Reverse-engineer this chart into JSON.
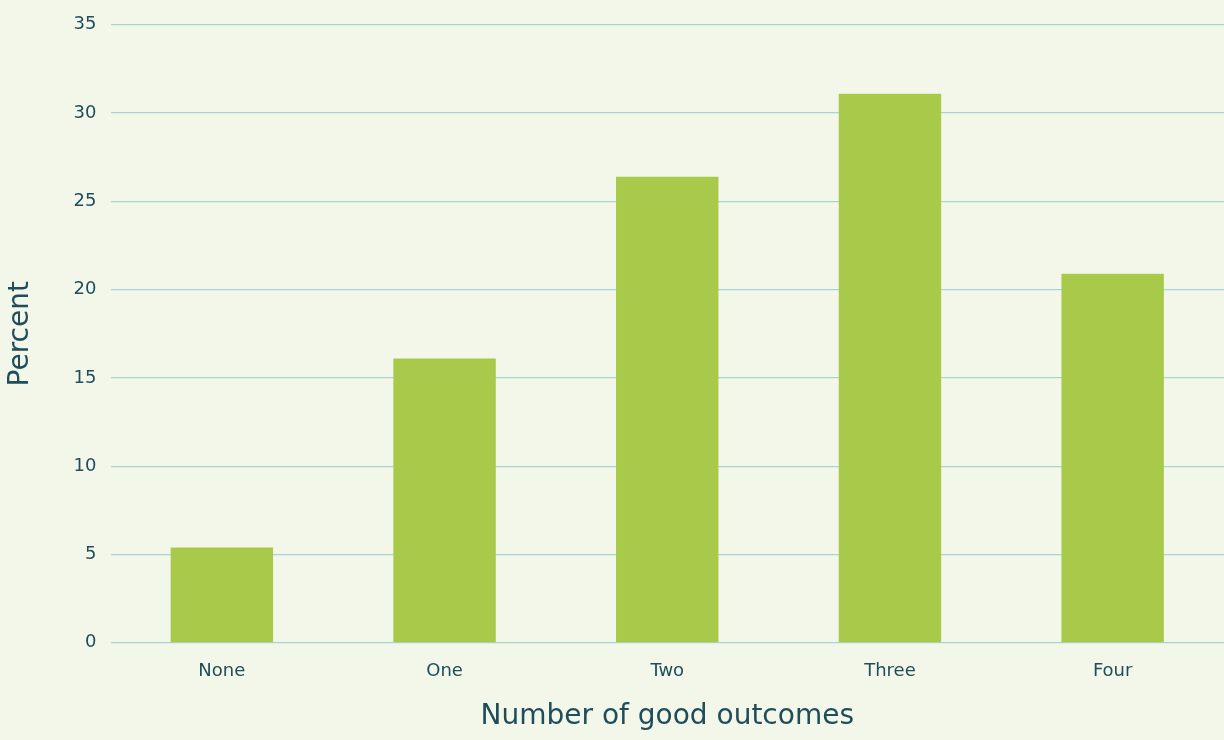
{
  "chart_data": {
    "type": "bar",
    "xlabel": "Number of good outcomes",
    "ylabel": "Percent",
    "categories": [
      "None",
      "One",
      "Two",
      "Three",
      "Four"
    ],
    "values": [
      5.4,
      16.1,
      26.4,
      31.1,
      20.9
    ],
    "color": "#a8c94a",
    "ylim": [
      0,
      35
    ],
    "yticks": [
      0,
      5,
      10,
      15,
      20,
      25,
      30,
      35
    ],
    "grid": "y",
    "legend": false
  }
}
